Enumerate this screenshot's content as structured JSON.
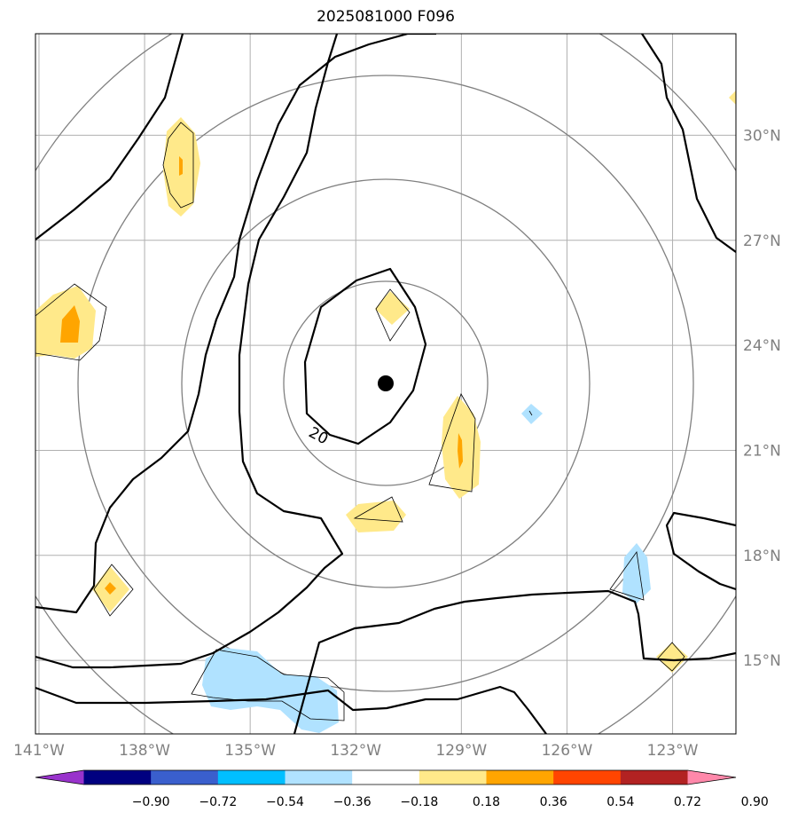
{
  "title": "2025081000 F096",
  "map": {
    "lon_range": [
      -141.1,
      -121.2
    ],
    "lat_range": [
      12.9,
      32.9
    ],
    "lon_ticks": [
      -141,
      -138,
      -135,
      -132,
      -129,
      -126,
      -123
    ],
    "lon_tick_labels": [
      "141°W",
      "138°W",
      "135°W",
      "132°W",
      "129°W",
      "126°W",
      "123°W"
    ],
    "lat_ticks": [
      15,
      18,
      21,
      24,
      27,
      30
    ],
    "lat_tick_labels": [
      "15°N",
      "18°N",
      "21°N",
      "24°N",
      "27°N",
      "30°N"
    ],
    "gridlines": true,
    "grid_color": "#b0b0b0",
    "range_ring_color": "#808080",
    "storm_center": {
      "lon": -131.0,
      "lat": 22.8
    },
    "contour_label": "20"
  },
  "colorbar": {
    "boundaries": [
      -0.9,
      -0.72,
      -0.54,
      -0.36,
      -0.18,
      0.18,
      0.36,
      0.54,
      0.72,
      0.9
    ],
    "tick_labels": [
      "−0.90",
      "−0.72",
      "−0.54",
      "−0.36",
      "−0.18",
      "0.18",
      "0.36",
      "0.54",
      "0.72",
      "0.90"
    ],
    "colors": [
      "#9933cc",
      "#000080",
      "#3a5fcd",
      "#00bfff",
      "#b0e2ff",
      "#ffffff",
      "#ffe98a",
      "#ffa500",
      "#ff4500",
      "#b22222",
      "#ff88aa"
    ]
  }
}
